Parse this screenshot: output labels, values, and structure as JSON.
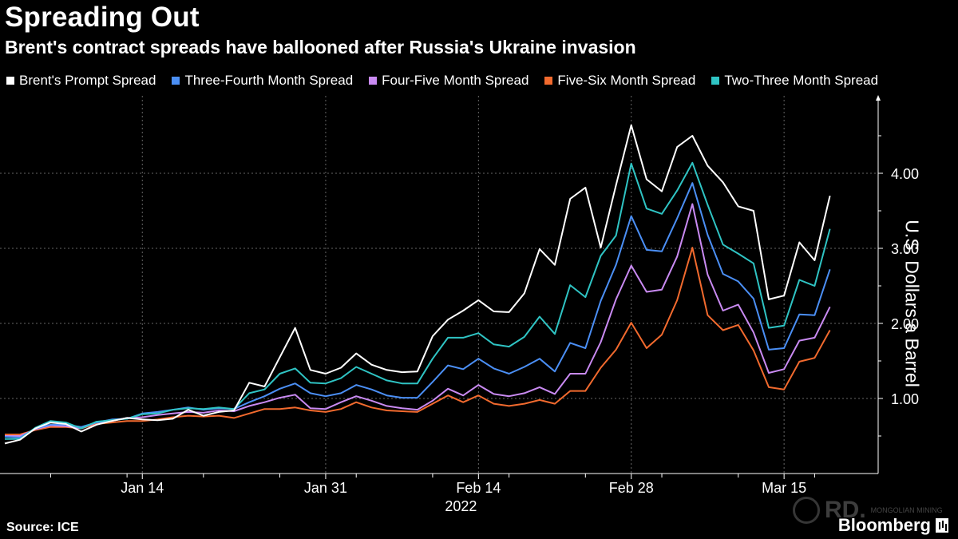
{
  "header": {
    "title": "Spreading Out",
    "subtitle": "Brent's contract spreads have ballooned after Russia's Ukraine invasion"
  },
  "footer": {
    "source": "Source: ICE",
    "brand": "Bloomberg",
    "watermark_text": "RD.",
    "watermark_small": "MONGOLIAN MINING"
  },
  "chart_data": {
    "type": "line",
    "title": "Spreading Out",
    "subtitle": "Brent's contract spreads have ballooned after Russia's Ukraine invasion",
    "ylabel": "U.S. Dollars a Barrel",
    "year_label": "2022",
    "ylim": [
      0,
      5
    ],
    "y_ticks": [
      1,
      2,
      3,
      4
    ],
    "y_tick_labels": [
      "1.00",
      "2.00",
      "3.00",
      "4.00"
    ],
    "x_ticks": [
      "Jan 14",
      "Jan 31",
      "Feb 14",
      "Feb 28",
      "Mar 15"
    ],
    "x_tick_index": [
      9,
      21,
      31,
      41,
      51
    ],
    "grid": true,
    "legend_position": "top",
    "series": [
      {
        "name": "Brent's Prompt Spread",
        "color": "#ffffff",
        "values": [
          0.4,
          0.45,
          0.6,
          0.68,
          0.66,
          0.56,
          0.65,
          0.7,
          0.74,
          0.72,
          0.71,
          0.73,
          0.85,
          0.77,
          0.82,
          0.84,
          1.21,
          1.16,
          1.55,
          1.94,
          1.38,
          1.33,
          1.41,
          1.6,
          1.45,
          1.38,
          1.35,
          1.36,
          1.83,
          2.05,
          2.17,
          2.31,
          2.16,
          2.15,
          2.4,
          2.99,
          2.78,
          3.66,
          3.81,
          3.01,
          3.84,
          4.64,
          3.92,
          3.76,
          4.35,
          4.5,
          4.1,
          3.88,
          3.56,
          3.5,
          2.32,
          2.37,
          3.08,
          2.84,
          3.7
        ]
      },
      {
        "name": "Three-Fourth Month Spread",
        "color": "#4b8ff5",
        "values": [
          0.49,
          0.48,
          0.6,
          0.65,
          0.65,
          0.62,
          0.68,
          0.72,
          0.73,
          0.8,
          0.82,
          0.85,
          0.88,
          0.85,
          0.87,
          0.86,
          0.95,
          1.03,
          1.13,
          1.2,
          1.07,
          1.03,
          1.07,
          1.18,
          1.12,
          1.04,
          1.01,
          1.01,
          1.22,
          1.44,
          1.39,
          1.53,
          1.4,
          1.33,
          1.42,
          1.53,
          1.36,
          1.74,
          1.67,
          2.3,
          2.78,
          3.43,
          2.98,
          2.96,
          3.4,
          3.87,
          3.18,
          2.66,
          2.56,
          2.33,
          1.65,
          1.67,
          2.12,
          2.11,
          2.72
        ]
      },
      {
        "name": "Four-Five Month Spread",
        "color": "#c98af2",
        "values": [
          0.5,
          0.5,
          0.59,
          0.64,
          0.63,
          0.6,
          0.68,
          0.7,
          0.74,
          0.75,
          0.78,
          0.8,
          0.82,
          0.81,
          0.84,
          0.83,
          0.9,
          0.95,
          1.01,
          1.05,
          0.87,
          0.86,
          0.95,
          1.03,
          0.97,
          0.9,
          0.87,
          0.85,
          0.97,
          1.13,
          1.04,
          1.18,
          1.06,
          1.03,
          1.07,
          1.15,
          1.06,
          1.33,
          1.33,
          1.75,
          2.32,
          2.77,
          2.42,
          2.45,
          2.89,
          3.59,
          2.65,
          2.17,
          2.25,
          1.88,
          1.34,
          1.39,
          1.77,
          1.81,
          2.22
        ]
      },
      {
        "name": "Five-Six Month Spread",
        "color": "#f26a2e",
        "values": [
          0.52,
          0.52,
          0.58,
          0.62,
          0.62,
          0.6,
          0.66,
          0.68,
          0.7,
          0.7,
          0.72,
          0.75,
          0.77,
          0.76,
          0.77,
          0.74,
          0.8,
          0.86,
          0.86,
          0.88,
          0.84,
          0.82,
          0.86,
          0.95,
          0.88,
          0.84,
          0.83,
          0.82,
          0.93,
          1.04,
          0.95,
          1.04,
          0.93,
          0.9,
          0.93,
          0.98,
          0.93,
          1.1,
          1.1,
          1.41,
          1.65,
          2.01,
          1.67,
          1.85,
          2.31,
          3.01,
          2.11,
          1.91,
          1.98,
          1.64,
          1.15,
          1.12,
          1.49,
          1.54,
          1.91
        ]
      },
      {
        "name": "Two-Three Month Spread",
        "color": "#2fc4c4",
        "values": [
          0.46,
          0.46,
          0.61,
          0.7,
          0.68,
          0.6,
          0.69,
          0.71,
          0.73,
          0.79,
          0.8,
          0.85,
          0.87,
          0.86,
          0.88,
          0.86,
          1.07,
          1.12,
          1.33,
          1.4,
          1.21,
          1.2,
          1.27,
          1.42,
          1.33,
          1.24,
          1.2,
          1.2,
          1.53,
          1.81,
          1.81,
          1.87,
          1.72,
          1.69,
          1.82,
          2.09,
          1.86,
          2.51,
          2.35,
          2.9,
          3.17,
          4.13,
          3.53,
          3.46,
          3.77,
          4.14,
          3.58,
          3.05,
          2.93,
          2.8,
          1.94,
          1.97,
          2.58,
          2.5,
          3.26
        ]
      }
    ]
  }
}
